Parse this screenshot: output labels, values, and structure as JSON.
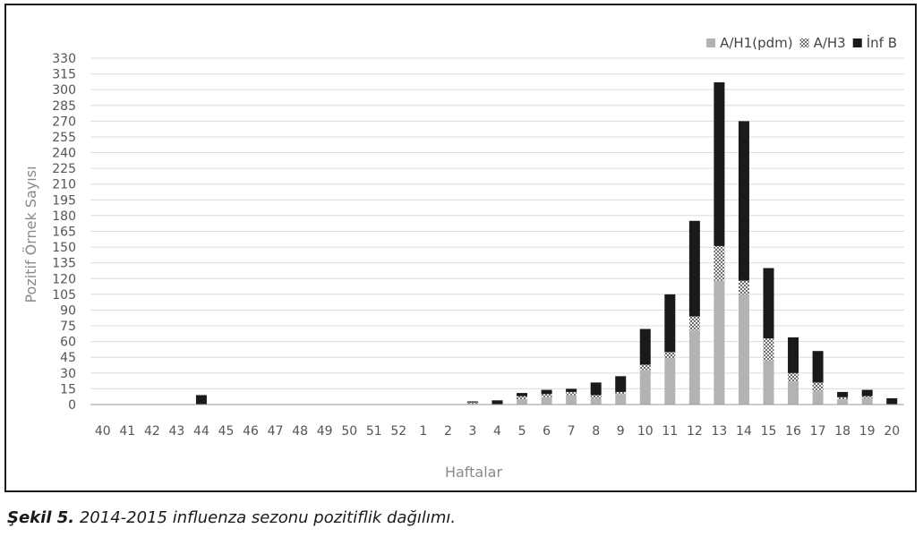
{
  "caption": {
    "label": "Şekil 5.",
    "text": "2014-2015 influenza sezonu pozitiflik dağılımı."
  },
  "chart_data": {
    "type": "bar",
    "stacked": true,
    "xlabel": "Haftalar",
    "ylabel": "Pozitif Örnek Sayısı",
    "ylim": [
      0,
      330
    ],
    "yticks": [
      0,
      15,
      30,
      45,
      60,
      75,
      90,
      105,
      120,
      135,
      150,
      165,
      180,
      195,
      210,
      225,
      240,
      255,
      270,
      285,
      300,
      315,
      330
    ],
    "grid": true,
    "legend_position": "top-right",
    "categories": [
      "40",
      "41",
      "42",
      "43",
      "44",
      "45",
      "46",
      "47",
      "48",
      "49",
      "50",
      "51",
      "52",
      "1",
      "2",
      "3",
      "4",
      "5",
      "6",
      "7",
      "8",
      "9",
      "10",
      "11",
      "12",
      "13",
      "14",
      "15",
      "16",
      "17",
      "18",
      "19",
      "20"
    ],
    "series": [
      {
        "name": "A/H1(pdm)",
        "color": "#b3b3b3",
        "pattern": "solid",
        "values": [
          0,
          0,
          0,
          0,
          0,
          0,
          0,
          0,
          0,
          0,
          0,
          0,
          0,
          0,
          0,
          1,
          0,
          5,
          7,
          9,
          6,
          10,
          33,
          44,
          71,
          118,
          105,
          42,
          22,
          13,
          5,
          6,
          0
        ]
      },
      {
        "name": "A/H3",
        "color": "#8c8c8c",
        "pattern": "checker",
        "values": [
          0,
          0,
          0,
          0,
          0,
          0,
          0,
          0,
          0,
          0,
          0,
          0,
          0,
          0,
          0,
          1,
          0,
          3,
          3,
          3,
          3,
          2,
          5,
          6,
          13,
          33,
          13,
          21,
          8,
          8,
          2,
          2,
          0
        ]
      },
      {
        "name": "İnf B",
        "color": "#1a1a1a",
        "pattern": "solid",
        "values": [
          0,
          0,
          0,
          0,
          9,
          0,
          0,
          0,
          0,
          0,
          0,
          0,
          0,
          0,
          0,
          1,
          4,
          3,
          4,
          3,
          12,
          15,
          34,
          55,
          91,
          156,
          152,
          67,
          34,
          30,
          5,
          6,
          6
        ]
      }
    ]
  }
}
